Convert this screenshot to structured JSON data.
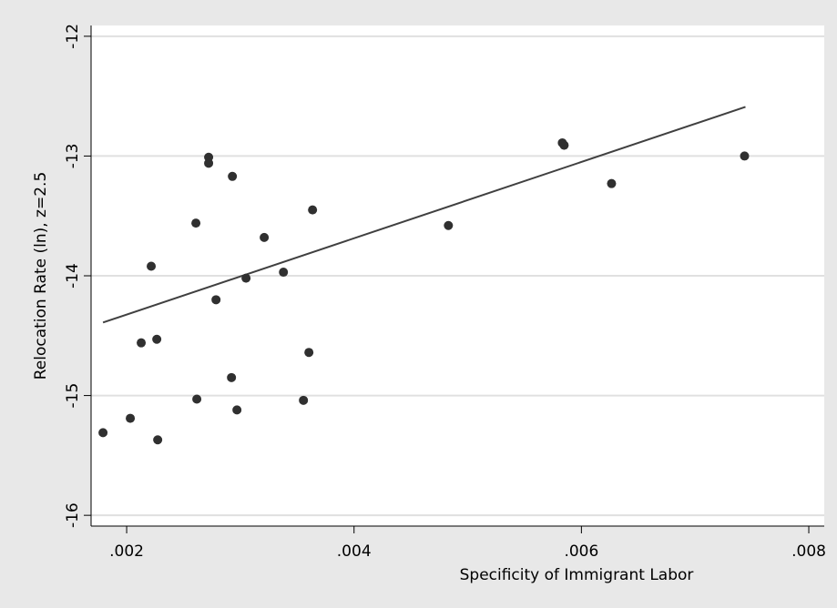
{
  "chart_data": {
    "type": "scatter",
    "x_label": "Specificity of Immigrant Labor",
    "y_label": "Relocation Rate (ln), z=2.5",
    "x": [
      0.001792,
      0.002032,
      0.002273,
      0.002128,
      0.002265,
      0.002216,
      0.002609,
      0.002617,
      0.002721,
      0.002721,
      0.002786,
      0.00293,
      0.002922,
      0.00297,
      0.00305,
      0.00321,
      0.003379,
      0.003635,
      0.003603,
      0.003555,
      0.00483,
      0.005832,
      0.005848,
      0.006265,
      0.007435
    ],
    "values": [
      -15.31,
      -15.19,
      -15.37,
      -14.56,
      -14.53,
      -13.92,
      -13.56,
      -15.03,
      -13.01,
      -13.06,
      -14.2,
      -13.17,
      -14.85,
      -15.12,
      -14.02,
      -13.68,
      -13.97,
      -13.45,
      -14.64,
      -15.04,
      -13.58,
      -12.89,
      -12.91,
      -13.23,
      -13.0
    ],
    "color": "#303030",
    "fit": {
      "x": [
        0.001792,
        0.007443
      ],
      "y": [
        -14.39,
        -12.59
      ],
      "color": "#404040"
    },
    "xlim": [
      0.001687,
      0.008136
    ],
    "ylim": [
      -16.09,
      -11.91
    ],
    "xticks": [
      {
        "value": 0.002,
        "label": ".002"
      },
      {
        "value": 0.004,
        "label": ".004"
      },
      {
        "value": 0.006,
        "label": ".006"
      },
      {
        "value": 0.008,
        "label": ".008"
      }
    ],
    "yticks": [
      -16,
      -15,
      -14,
      -13,
      -12
    ],
    "grid": true
  }
}
